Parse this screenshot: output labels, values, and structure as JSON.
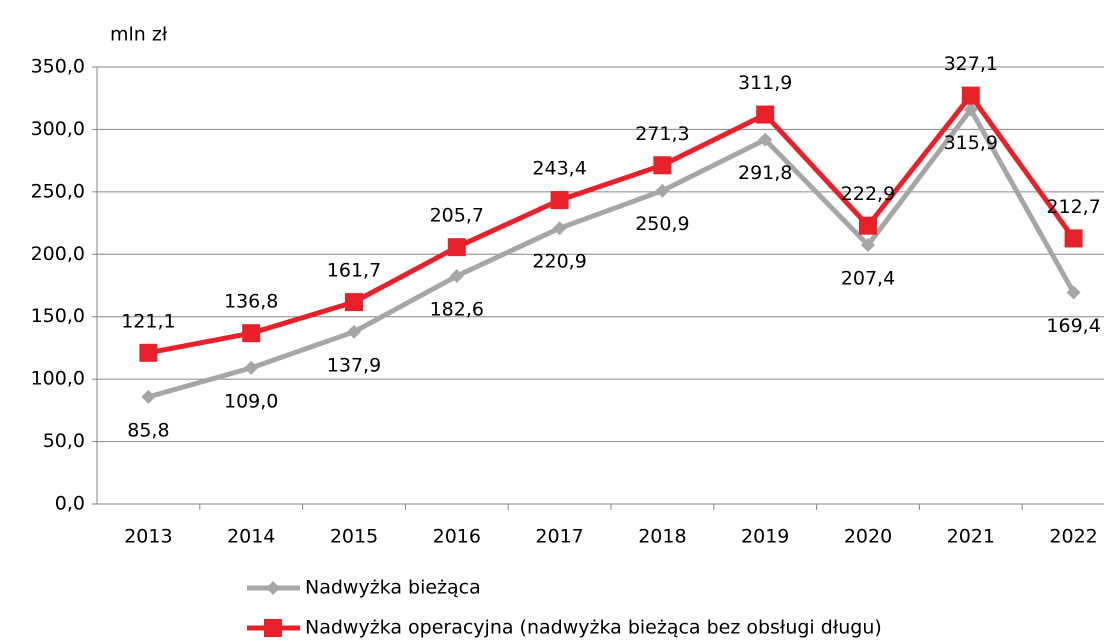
{
  "chart_data": {
    "type": "line",
    "y_axis_label": "mln zł",
    "categories": [
      "2013",
      "2014",
      "2015",
      "2016",
      "2017",
      "2018",
      "2019",
      "2020",
      "2021",
      "2022"
    ],
    "series": [
      {
        "name": "Nadwyżka bieżąca",
        "color": "#a6a6a6",
        "marker": "diamond",
        "values": [
          85.8,
          109.0,
          137.9,
          182.6,
          220.9,
          250.9,
          291.8,
          207.4,
          315.9,
          169.4
        ],
        "value_labels": [
          "85,8",
          "109,0",
          "137,9",
          "182,6",
          "220,9",
          "250,9",
          "291,8",
          "207,4",
          "315,9",
          "169,4"
        ]
      },
      {
        "name": "Nadwyżka operacyjna (nadwyżka bieżąca bez obsługi długu)",
        "color": "#e8202a",
        "marker": "square",
        "values": [
          121.1,
          136.8,
          161.7,
          205.7,
          243.4,
          271.3,
          311.9,
          222.9,
          327.1,
          212.7
        ],
        "value_labels": [
          "121,1",
          "136,8",
          "161,7",
          "205,7",
          "243,4",
          "271,3",
          "311,9",
          "222,9",
          "327,1",
          "212,7"
        ]
      }
    ],
    "ylim": [
      0,
      350
    ],
    "yticks": [
      {
        "value": 0,
        "label": "0,0"
      },
      {
        "value": 50,
        "label": "50,0"
      },
      {
        "value": 100,
        "label": "100,0"
      },
      {
        "value": 150,
        "label": "150,0"
      },
      {
        "value": 200,
        "label": "200,0"
      },
      {
        "value": 250,
        "label": "250,0"
      },
      {
        "value": 300,
        "label": "300,0"
      },
      {
        "value": 350,
        "label": "350,0"
      }
    ],
    "grid": true,
    "legend": "bottom"
  }
}
